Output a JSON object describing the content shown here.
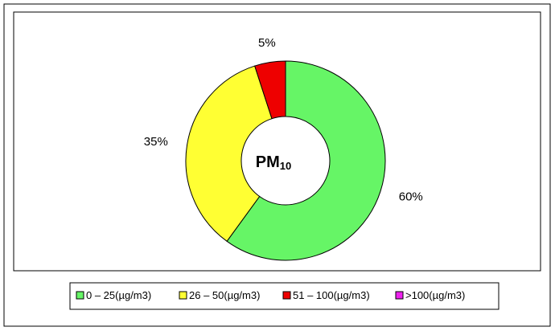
{
  "chart_data": {
    "type": "donut",
    "center_label": {
      "text": "PM",
      "subscript": "10"
    },
    "categories": [
      "0 – 25(µg/m3)",
      "26 – 50(µg/m3)",
      "51 – 100(µg/m3)",
      ">100(µg/m3)"
    ],
    "values": [
      60,
      35,
      5,
      0
    ],
    "value_labels": [
      "60%",
      "35%",
      "5%",
      null
    ],
    "colors": [
      "#66f566",
      "#ffff33",
      "#ee0000",
      "#ee22ee"
    ]
  }
}
